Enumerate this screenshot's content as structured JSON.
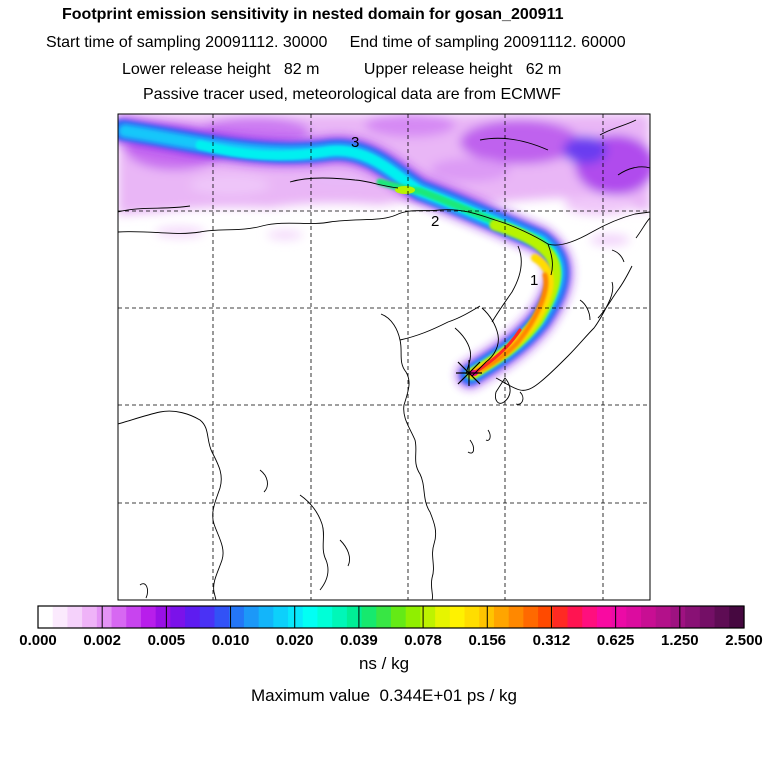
{
  "title": "Footprint emission sensitivity in nested domain for gosan_200911",
  "sampling_line": "Start time of sampling 20091112. 30000     End time of sampling 20091112. 60000",
  "release_line": "Lower release height   82 m          Upper release height   62 m",
  "tracer_line": "Passive tracer used, meteorological data are from ECMWF",
  "trajectory_labels": [
    "1",
    "2",
    "3"
  ],
  "colorbar": {
    "ticks": [
      "0.000",
      "0.002",
      "0.005",
      "0.010",
      "0.020",
      "0.039",
      "0.078",
      "0.156",
      "0.312",
      "0.625",
      "1.250",
      "2.500"
    ],
    "units": "ns / kg",
    "colors": [
      "#ffffff",
      "#fbeafd",
      "#f5d2fb",
      "#efb3f8",
      "#e493f5",
      "#d768f2",
      "#c844ef",
      "#b81eeb",
      "#9a10e6",
      "#7b12ea",
      "#5e1cf0",
      "#4a32f5",
      "#3252f6",
      "#2476f7",
      "#1c98f8",
      "#13b5fa",
      "#0dd0fb",
      "#08e8fc",
      "#02fff4",
      "#00ffd7",
      "#00f7b8",
      "#00ef96",
      "#16e96e",
      "#38e644",
      "#64ea16",
      "#90ef00",
      "#bef300",
      "#e6f500",
      "#fff200",
      "#ffdd00",
      "#ffc400",
      "#ffa500",
      "#ff8800",
      "#ff6900",
      "#ff4a00",
      "#ff2a23",
      "#ff1451",
      "#ff0f7e",
      "#f90aa1",
      "#ec0aa6",
      "#dc0c9f",
      "#c80e93",
      "#b3118a",
      "#9e1281",
      "#891175",
      "#740f66",
      "#5e0c54",
      "#460840"
    ]
  },
  "max_value": "Maximum value  0.344E+01 ps / kg"
}
